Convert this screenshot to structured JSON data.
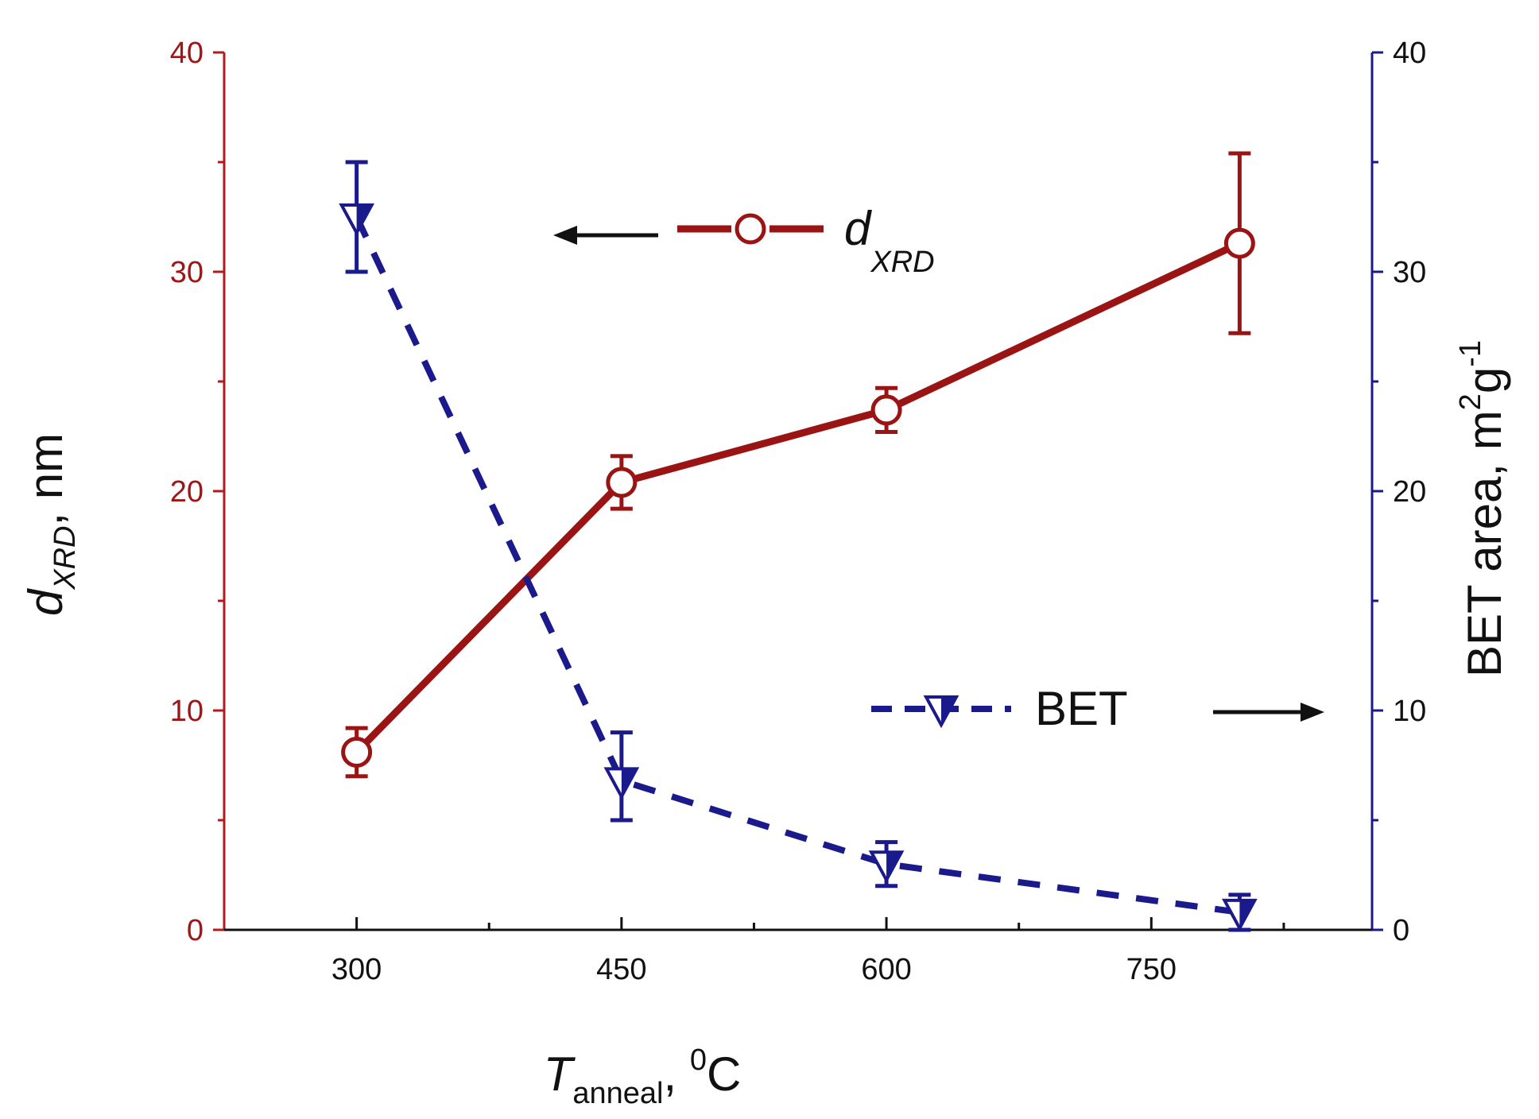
{
  "chart_data": {
    "type": "line",
    "title": "",
    "xlabel": {
      "symbol": "T",
      "subscript": "anneal",
      "suffix": ", ",
      "unit_sup": "0",
      "unit": "C"
    },
    "ylabel_left": {
      "symbol": "d",
      "subscript": "XRD",
      "suffix": ", nm"
    },
    "ylabel_right": {
      "main": "BET area, m",
      "sup1": "2",
      "mid": "g",
      "sup2": "-1"
    },
    "xlim": [
      225,
      875
    ],
    "x_ticks": [
      300,
      450,
      600,
      750
    ],
    "x_minor_ticks": [
      375,
      525,
      675,
      825
    ],
    "ylim_left": [
      0,
      40
    ],
    "ylim_right": [
      0,
      40
    ],
    "y_ticks": [
      0,
      10,
      20,
      30,
      40
    ],
    "y_minor_ticks": [
      5,
      15,
      25,
      35
    ],
    "grid": false,
    "colors": {
      "left_axis": "#b01c1c",
      "right_axis": "#1a1a8c",
      "xrd": "#9b1414",
      "bet": "#1a1a8c"
    },
    "series": [
      {
        "name": "dXRD",
        "axis": "left",
        "style": "solid",
        "marker": "open-circle",
        "x": [
          300,
          450,
          600,
          800
        ],
        "y": [
          8.1,
          20.4,
          23.7,
          31.3
        ],
        "err_upper": [
          9.2,
          21.6,
          24.7,
          35.4
        ],
        "err_lower": [
          7.0,
          19.2,
          22.7,
          27.2
        ]
      },
      {
        "name": "BET",
        "axis": "right",
        "style": "dashed",
        "marker": "half-filled-down-triangle",
        "x": [
          300,
          450,
          600,
          800
        ],
        "y": [
          32.5,
          6.8,
          3.0,
          0.8
        ],
        "err_upper": [
          35.0,
          9.0,
          4.0,
          1.6
        ],
        "err_lower": [
          30.0,
          5.0,
          2.0,
          0.0
        ]
      }
    ],
    "legend": [
      {
        "series": "dXRD",
        "label_symbol": "d",
        "label_subscript": "XRD",
        "arrow": "left",
        "position": "upper-middle"
      },
      {
        "series": "BET",
        "label": "BET",
        "arrow": "right",
        "position": "lower-right"
      }
    ]
  }
}
